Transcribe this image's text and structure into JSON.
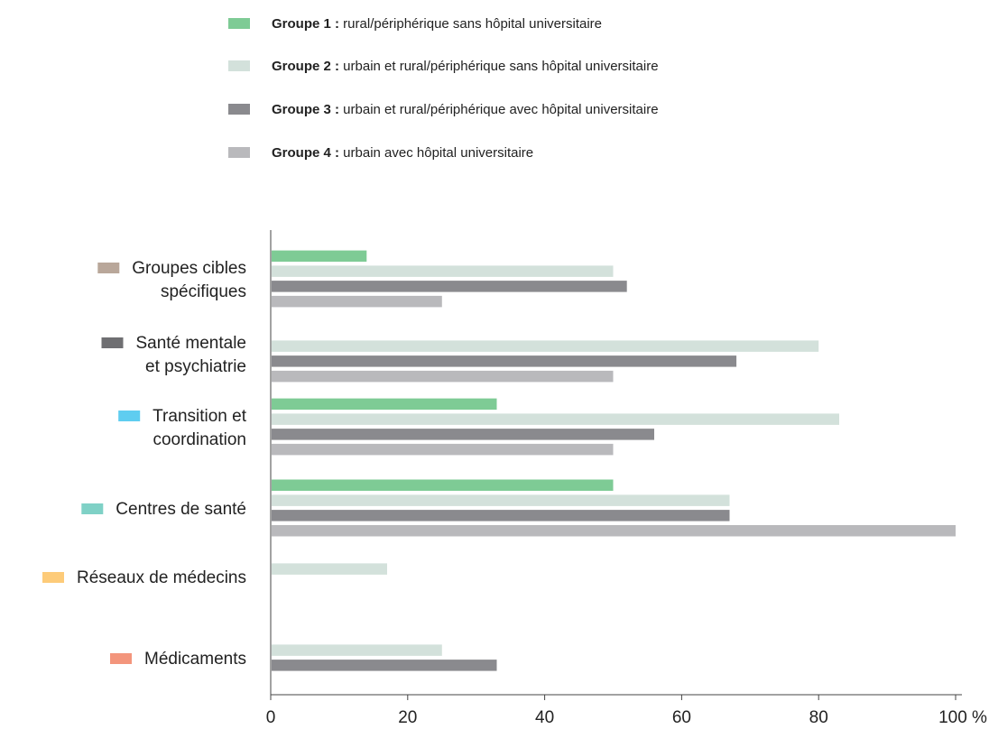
{
  "chart_data": {
    "type": "bar",
    "orientation": "horizontal",
    "categories": [
      {
        "line1": "Groupes cibles",
        "line2": "spécifiques",
        "color": "#b9a79a"
      },
      {
        "line1": "Santé mentale",
        "line2": "et psychiatrie",
        "color": "#6f6f72"
      },
      {
        "line1": "Transition et",
        "line2": "coordination",
        "color": "#5fcdf0"
      },
      {
        "line1": "Centres de santé",
        "line2": "",
        "color": "#7fd1c6"
      },
      {
        "line1": "Réseaux de médecins",
        "line2": "",
        "color": "#fdcb79"
      },
      {
        "line1": "Médicaments",
        "line2": "",
        "color": "#f3957c"
      }
    ],
    "series": [
      {
        "name_bold": "Groupe 1 :",
        "name_rest": " rural/périphérique sans hôpital universitaire",
        "color": "#7ecb95",
        "values": [
          14,
          0,
          33,
          50,
          0,
          0
        ]
      },
      {
        "name_bold": "Groupe 2 :",
        "name_rest": " urbain et rural/périphérique sans hôpital universitaire",
        "color": "#d3e1db",
        "values": [
          50,
          80,
          83,
          67,
          17,
          25
        ]
      },
      {
        "name_bold": "Groupe 3 :",
        "name_rest": " urbain et rural/périphérique avec hôpital universitaire",
        "color": "#8a8a8e",
        "values": [
          52,
          68,
          56,
          67,
          0,
          33
        ]
      },
      {
        "name_bold": "Groupe 4 :",
        "name_rest": " urbain avec hôpital universitaire",
        "color": "#b9b9bc",
        "values": [
          25,
          50,
          50,
          100,
          0,
          0
        ]
      }
    ],
    "xlim": [
      0,
      100
    ],
    "xticks": [
      0,
      20,
      40,
      60,
      80,
      100
    ],
    "xtick_labels": [
      "0",
      "20",
      "40",
      "60",
      "80",
      "100 %"
    ],
    "grid": false,
    "legend_position": "top"
  }
}
